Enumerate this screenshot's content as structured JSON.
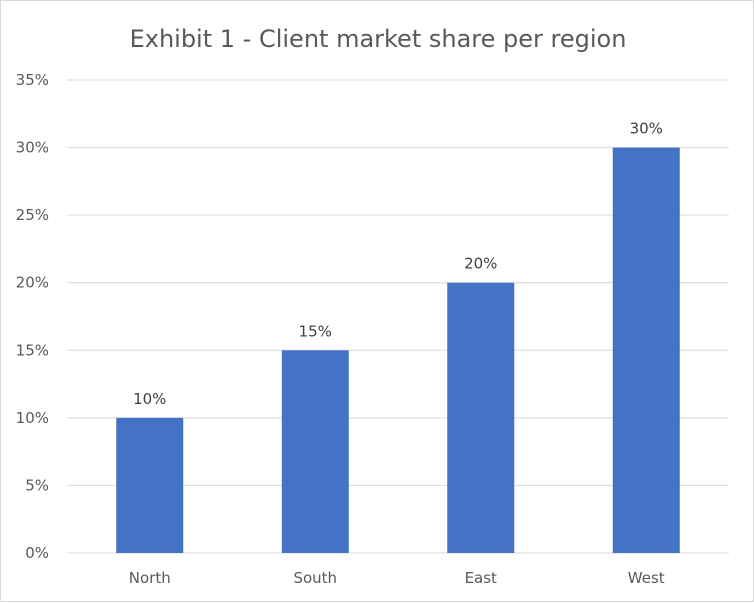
{
  "chart_data": {
    "type": "bar",
    "title": "Exhibit 1 - Client market share per region",
    "categories": [
      "North",
      "South",
      "East",
      "West"
    ],
    "values": [
      10,
      15,
      20,
      30
    ],
    "data_labels": [
      "10%",
      "15%",
      "20%",
      "30%"
    ],
    "y_ticks": [
      "0%",
      "5%",
      "10%",
      "15%",
      "20%",
      "25%",
      "30%",
      "35%"
    ],
    "ylim": [
      0,
      35
    ],
    "y_unit": "%",
    "grid": true,
    "legend": "none",
    "colors": {
      "bar": "#4472c4",
      "grid": "#d9d9d9",
      "text": "#595959"
    }
  }
}
